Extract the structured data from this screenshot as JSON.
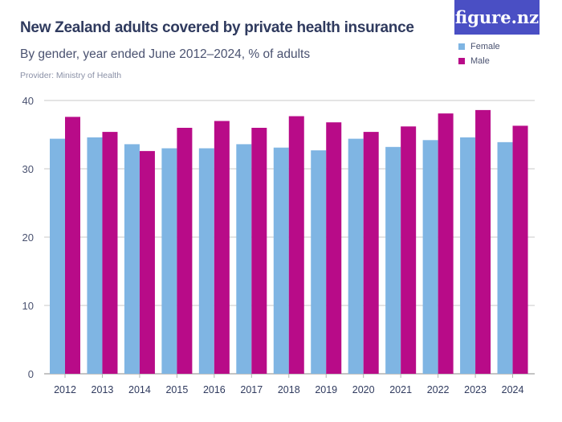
{
  "logo_text": "figure.nz",
  "chart_data": {
    "type": "bar",
    "title": "New Zealand adults covered by private health insurance",
    "subtitle": "By gender, year ended June 2012–2024, % of adults",
    "provider": "Provider: Ministry of Health",
    "categories": [
      "2012",
      "2013",
      "2014",
      "2015",
      "2016",
      "2017",
      "2018",
      "2019",
      "2020",
      "2021",
      "2022",
      "2023",
      "2024"
    ],
    "series": [
      {
        "name": "Female",
        "color": "#7fb5e3",
        "values": [
          34.4,
          34.6,
          33.6,
          33.0,
          33.0,
          33.6,
          33.1,
          32.7,
          34.4,
          33.2,
          34.2,
          34.6,
          33.9
        ]
      },
      {
        "name": "Male",
        "color": "#b80b88",
        "values": [
          37.6,
          35.4,
          32.6,
          36.0,
          37.0,
          36.0,
          37.7,
          36.8,
          35.4,
          36.2,
          38.1,
          38.6,
          36.3
        ]
      }
    ],
    "yticks": [
      0,
      10,
      20,
      30,
      40
    ],
    "ylim": [
      0,
      40
    ],
    "grid": true,
    "legend": "top-right"
  }
}
